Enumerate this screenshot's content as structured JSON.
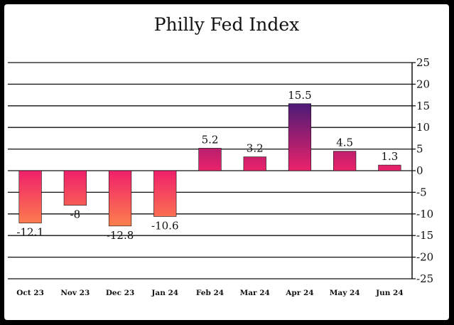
{
  "chart_data": {
    "type": "bar",
    "title": "Philly Fed Index",
    "xlabel": "",
    "ylabel": "",
    "categories": [
      "Oct 23",
      "Nov 23",
      "Dec 23",
      "Jan 24",
      "Feb 24",
      "Mar 24",
      "Apr 24",
      "May 24",
      "Jun 24"
    ],
    "values": [
      -12.1,
      -8,
      -12.8,
      -10.6,
      5.2,
      3.2,
      15.5,
      4.5,
      1.3
    ],
    "data_labels": [
      "-12.1",
      "-8",
      "-12.8",
      "-10.6",
      "5.2",
      "3.2",
      "15.5",
      "4.5",
      "1.3"
    ],
    "ylim": [
      -25,
      25
    ],
    "yticks": [
      25,
      20,
      15,
      10,
      5,
      0,
      -5,
      -10,
      -15,
      -20,
      -25
    ],
    "ytick_labels": [
      "25",
      "20",
      "15",
      "10",
      "5",
      "0",
      "-5",
      "-10",
      "-15",
      "-20",
      "-25"
    ],
    "y_axis_side": "right",
    "grid": true,
    "colors": {
      "positive_top": "#3a1a78",
      "positive_bottom": "#f0226a",
      "negative_top": "#f0226a",
      "negative_bottom": "#ff8a4a",
      "grid": "#111111"
    }
  }
}
